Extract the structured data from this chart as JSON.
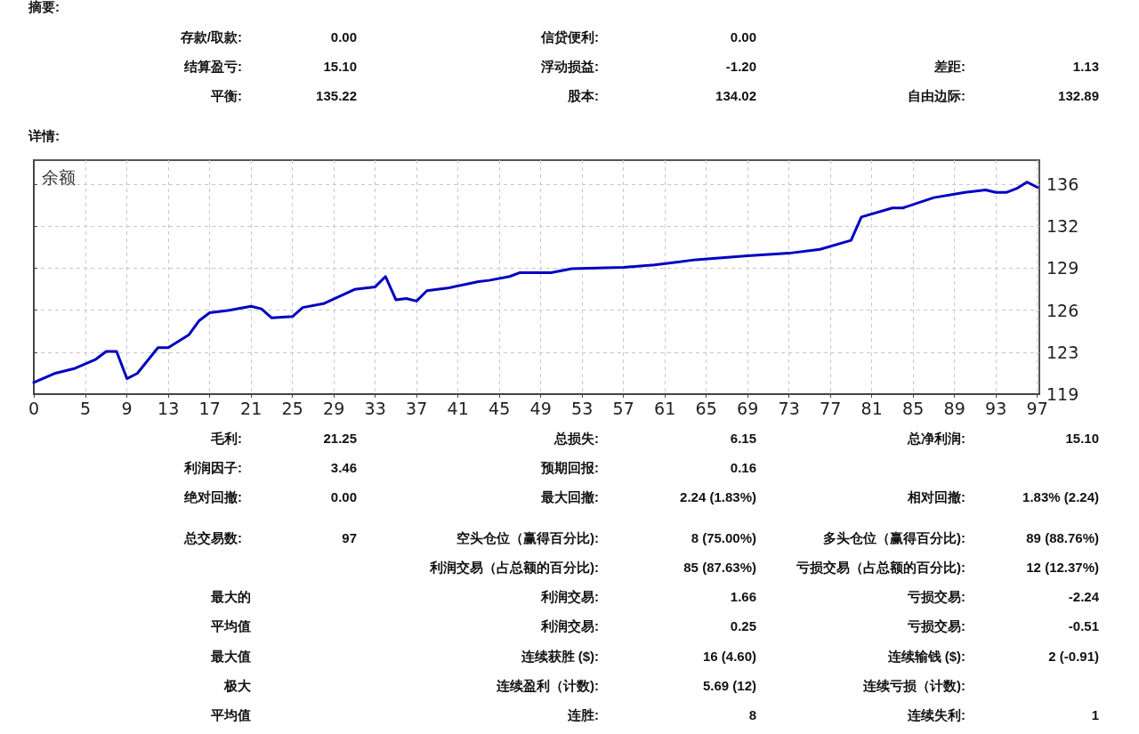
{
  "chart_data": {
    "type": "line",
    "title": "余额",
    "x": [
      0,
      2,
      4,
      6,
      7,
      8,
      9,
      10,
      12,
      13,
      15,
      16,
      17,
      19,
      21,
      22,
      23,
      25,
      26,
      28,
      31,
      33,
      34,
      35,
      36,
      37,
      38,
      40,
      43,
      44,
      46,
      47,
      50,
      52,
      57,
      60,
      64,
      69,
      73,
      76,
      79,
      80,
      83,
      84,
      87,
      90,
      92,
      93,
      94,
      95,
      96,
      97
    ],
    "series": [
      {
        "color": "#0000c0",
        "values": [
          120.2,
          120.9,
          121.3,
          122.0,
          122.6,
          122.6,
          120.5,
          120.9,
          122.9,
          122.9,
          123.9,
          125.0,
          125.6,
          125.8,
          126.1,
          125.9,
          125.2,
          125.3,
          126.0,
          126.3,
          127.4,
          127.6,
          128.4,
          126.6,
          126.7,
          126.5,
          127.3,
          127.5,
          128.0,
          128.1,
          128.4,
          128.7,
          128.7,
          129.0,
          129.1,
          129.3,
          129.7,
          130.0,
          130.2,
          130.5,
          131.2,
          133.0,
          133.7,
          133.7,
          134.5,
          134.9,
          135.1,
          134.9,
          134.9,
          135.2,
          135.7,
          135.3
        ]
      }
    ],
    "xlim": [
      0,
      97.2
    ],
    "xticks": [
      0,
      5,
      9,
      13,
      17,
      21,
      25,
      29,
      33,
      37,
      41,
      45,
      49,
      53,
      57,
      61,
      65,
      69,
      73,
      77,
      81,
      85,
      89,
      93,
      97
    ],
    "ylim": [
      119.3,
      137.4
    ],
    "yticks": [
      {
        "value": 119.3,
        "label": "119"
      },
      {
        "value": 122.55,
        "label": "123"
      },
      {
        "value": 125.8,
        "label": "126"
      },
      {
        "value": 129.05,
        "label": "129"
      },
      {
        "value": 132.3,
        "label": "132"
      },
      {
        "value": 135.55,
        "label": "136"
      }
    ],
    "grid": true,
    "marker": "none",
    "line_style": "solid",
    "annotations": [
      "摘要:",
      "存款/取款:",
      "0.00",
      "信贷便利:",
      "0.00",
      "结算盈亏:",
      "15.10",
      "浮动损益:",
      "-1.20",
      "差距:",
      "1.13",
      "平衡:",
      "135.22",
      "股本:",
      "134.02",
      "自由边际:",
      "132.89",
      "详情:",
      "毛利:",
      "21.25",
      "总损失:",
      "6.15",
      "总净利润:",
      "15.10",
      "利润因子:",
      "3.46",
      "预期回报:",
      "0.16",
      "绝对回撤:",
      "0.00",
      "最大回撤:",
      "2.24 (1.83%)",
      "相对回撤:",
      "1.83% (2.24)",
      "总交易数:",
      "97",
      "空头仓位（赢得百分比):",
      "8 (75.00%)",
      "多头仓位（赢得百分比):",
      "89 (88.76%)",
      "利润交易（占总额的百分比):",
      "85 (87.63%)",
      "亏损交易（占总额的百分比):",
      "12 (12.37%)",
      "最大的",
      "利润交易:",
      "1.66",
      "亏损交易:",
      "-2.24",
      "平均值",
      "利润交易:",
      "0.25",
      "亏损交易:",
      "-0.51",
      "最大值",
      "连续获胜 ($):",
      "16 (4.60)",
      "连续输钱 ($):",
      "2 (-0.91)",
      "极大",
      "连续盈利（计数):",
      "5.69 (12)",
      "连续亏损（计数):",
      "平均值",
      "连胜:",
      "8",
      "连续失利:",
      "1"
    ]
  }
}
